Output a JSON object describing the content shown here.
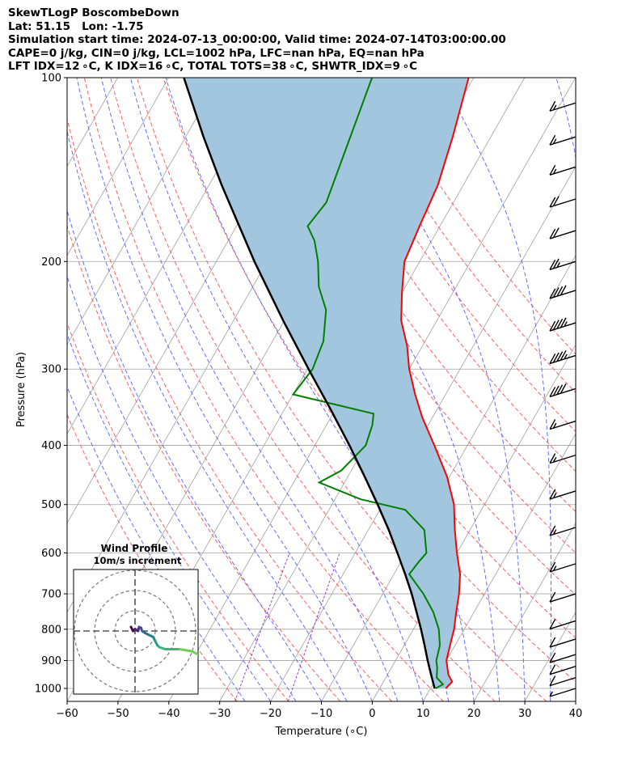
{
  "header": {
    "line1": "SkewTLogP BoscombeDown",
    "line2": "Lat: 51.15   Lon: -1.75",
    "line3": "Simulation start time: 2024-07-13_00:00:00, Valid time: 2024-07-14T03:00:00.00",
    "line4": "CAPE=0 j/kg, CIN=0 j/kg, LCL=1002 hPa, LFC=nan hPa, EQ=nan hPa",
    "line5": "LFT IDX=12 ∘C, K IDX=16 ∘C, TOTAL TOTS=38 ∘C, SHWTR_IDX=9 ∘C"
  },
  "chart_data": {
    "type": "line",
    "xlabel": "Temperature (∘C)",
    "ylabel": "Pressure (hPa)",
    "xlim": [
      -60,
      40
    ],
    "ylim": [
      1050,
      100
    ],
    "y_scale": "log",
    "skew": true,
    "grid": true,
    "x_ticks": [
      "−60",
      "−50",
      "−40",
      "−30",
      "−20",
      "−10",
      "0",
      "10",
      "20",
      "30",
      "40"
    ],
    "x_tick_values": [
      -60,
      -50,
      -40,
      -30,
      -20,
      -10,
      0,
      10,
      20,
      30,
      40
    ],
    "y_ticks": [
      "100",
      "200",
      "300",
      "400",
      "500",
      "600",
      "700",
      "800",
      "900",
      "1000"
    ],
    "y_tick_values": [
      100,
      200,
      300,
      400,
      500,
      600,
      700,
      800,
      900,
      1000
    ],
    "colors": {
      "temperature": "#ff0000",
      "dewpoint": "#008000",
      "parcel": "#000000",
      "cape_fill": "#a3c6df",
      "dry_adiabats": "#ff6060",
      "moist_adiabats": "#5f6fff",
      "mixing_ratio": "#9c40c0",
      "isotherms": "#a0a0a0"
    },
    "series": [
      {
        "key": "temperature",
        "values": [
          [
            1000,
            13.0
          ],
          [
            975,
            13.5
          ],
          [
            950,
            12.0
          ],
          [
            925,
            11.0
          ],
          [
            900,
            10.0
          ],
          [
            850,
            9.0
          ],
          [
            800,
            8.0
          ],
          [
            750,
            6.5
          ],
          [
            700,
            5.0
          ],
          [
            650,
            3.0
          ],
          [
            600,
            0.0
          ],
          [
            550,
            -3.0
          ],
          [
            500,
            -6.0
          ],
          [
            450,
            -10.5
          ],
          [
            400,
            -16.5
          ],
          [
            360,
            -22.0
          ],
          [
            330,
            -26.0
          ],
          [
            300,
            -30.0
          ],
          [
            275,
            -33.0
          ],
          [
            250,
            -37.0
          ],
          [
            225,
            -40.0
          ],
          [
            200,
            -43.0
          ],
          [
            175,
            -44.0
          ],
          [
            150,
            -45.0
          ],
          [
            125,
            -47.5
          ],
          [
            100,
            -51.0
          ]
        ]
      },
      {
        "key": "dewpoint",
        "values": [
          [
            1000,
            11.0
          ],
          [
            985,
            12.0
          ],
          [
            960,
            10.0
          ],
          [
            925,
            9.0
          ],
          [
            900,
            8.0
          ],
          [
            850,
            7.0
          ],
          [
            800,
            5.0
          ],
          [
            750,
            2.0
          ],
          [
            700,
            -2.0
          ],
          [
            650,
            -7.0
          ],
          [
            620,
            -6.5
          ],
          [
            600,
            -6.0
          ],
          [
            550,
            -9.0
          ],
          [
            510,
            -15.0
          ],
          [
            490,
            -25.0
          ],
          [
            460,
            -35.0
          ],
          [
            440,
            -32.0
          ],
          [
            400,
            -30.0
          ],
          [
            370,
            -31.0
          ],
          [
            355,
            -32.0
          ],
          [
            330,
            -50.0
          ],
          [
            300,
            -49.0
          ],
          [
            270,
            -50.0
          ],
          [
            240,
            -53.0
          ],
          [
            220,
            -57.0
          ],
          [
            200,
            -60.0
          ],
          [
            185,
            -63.0
          ],
          [
            175,
            -66.0
          ],
          [
            160,
            -65.0
          ],
          [
            100,
            -70.0
          ]
        ]
      },
      {
        "key": "parcel",
        "values": [
          [
            1000,
            10.8
          ],
          [
            950,
            8.6
          ],
          [
            900,
            6.3
          ],
          [
            850,
            4.0
          ],
          [
            800,
            1.5
          ],
          [
            750,
            -1.3
          ],
          [
            700,
            -4.3
          ],
          [
            650,
            -7.8
          ],
          [
            600,
            -11.7
          ],
          [
            550,
            -16.0
          ],
          [
            500,
            -21.0
          ],
          [
            450,
            -26.7
          ],
          [
            400,
            -33.2
          ],
          [
            350,
            -40.8
          ],
          [
            300,
            -49.8
          ],
          [
            250,
            -60.2
          ],
          [
            200,
            -72.5
          ],
          [
            150,
            -87.5
          ],
          [
            125,
            -96.5
          ],
          [
            100,
            -107.0
          ]
        ]
      }
    ],
    "wind_barbs": [
      {
        "p": 1000,
        "spd": 5
      },
      {
        "p": 960,
        "spd": 10
      },
      {
        "p": 920,
        "spd": 10
      },
      {
        "p": 880,
        "spd": 10
      },
      {
        "p": 830,
        "spd": 10
      },
      {
        "p": 775,
        "spd": 10
      },
      {
        "p": 700,
        "spd": 10
      },
      {
        "p": 625,
        "spd": 15
      },
      {
        "p": 545,
        "spd": 15
      },
      {
        "p": 475,
        "spd": 15
      },
      {
        "p": 415,
        "spd": 15
      },
      {
        "p": 365,
        "spd": 15
      },
      {
        "p": 323,
        "spd": 40
      },
      {
        "p": 285,
        "spd": 45
      },
      {
        "p": 252,
        "spd": 45
      },
      {
        "p": 223,
        "spd": 40
      },
      {
        "p": 200,
        "spd": 25
      },
      {
        "p": 178,
        "spd": 20
      },
      {
        "p": 158,
        "spd": 20
      },
      {
        "p": 140,
        "spd": 15
      },
      {
        "p": 125,
        "spd": 15
      },
      {
        "p": 110,
        "spd": 15
      }
    ],
    "inset": {
      "title_line1": "Wind Profile",
      "title_line2": "10m/s increment",
      "rings": [
        10,
        20,
        30
      ],
      "hodograph": [
        [
          -2,
          2
        ],
        [
          -1,
          0
        ],
        [
          0,
          1
        ],
        [
          1.5,
          0
        ],
        [
          2,
          2
        ],
        [
          3,
          1.5
        ],
        [
          3.5,
          0
        ],
        [
          5,
          -1
        ],
        [
          7,
          -2
        ],
        [
          9,
          -3
        ],
        [
          10,
          -5
        ],
        [
          11,
          -7
        ],
        [
          12,
          -8
        ],
        [
          15,
          -9
        ],
        [
          22,
          -9
        ],
        [
          28,
          -10
        ],
        [
          32,
          -12
        ],
        [
          35,
          -12
        ]
      ]
    }
  }
}
